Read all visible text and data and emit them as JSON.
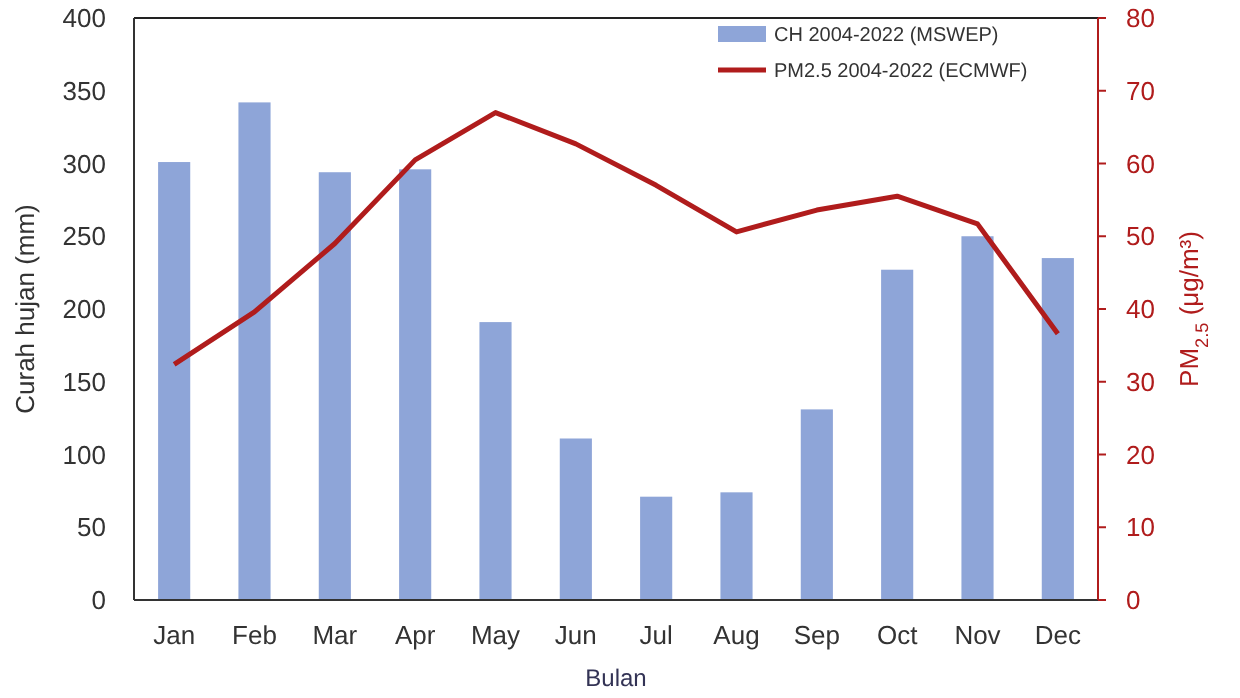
{
  "chart_data": {
    "type": "bar",
    "xlabel": "Bulan",
    "ylabel": "Curah hujan (mm)",
    "y2label": "PM$_{2.5}$ (μg/m³)",
    "categories": [
      "Jan",
      "Feb",
      "Mar",
      "Apr",
      "May",
      "Jun",
      "Jul",
      "Aug",
      "Sep",
      "Oct",
      "Nov",
      "Dec"
    ],
    "series": [
      {
        "name": "CH 2004-2022 (MSWEP)",
        "color": "#8ea5d8",
        "values": [
          301,
          342,
          294,
          296,
          191,
          111,
          71,
          74,
          131,
          227,
          250,
          235
        ]
      },
      {
        "name": "PM2.5 2004-2022 (ECMWF)",
        "type": "line",
        "axis": "y2",
        "color": "#b01c1c",
        "values": [
          32.4,
          39.6,
          49,
          60.5,
          67,
          62.7,
          57,
          50.6,
          53.6,
          55.5,
          51.7,
          36.6
        ]
      }
    ],
    "ylim": [
      0,
      400
    ],
    "yticks": [
      0,
      50,
      100,
      150,
      200,
      250,
      300,
      350,
      400
    ],
    "y2lim": [
      0,
      80
    ],
    "y2ticks": [
      0,
      10,
      20,
      30,
      40,
      50,
      60,
      70,
      80
    ],
    "legend": "top right",
    "grid": false
  }
}
